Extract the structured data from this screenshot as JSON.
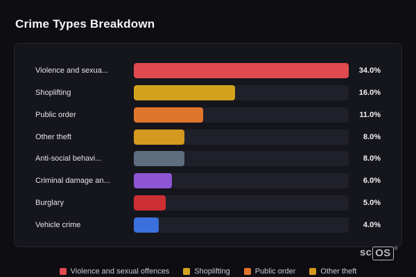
{
  "page": {
    "title": "Crime Types Breakdown"
  },
  "watermark": {
    "prefix": "sc",
    "boxed": "OS",
    "reg": "®"
  },
  "chart_data": {
    "type": "bar",
    "orientation": "horizontal",
    "title": "Crime Types Breakdown",
    "xlabel": "",
    "ylabel": "",
    "xlim": [
      0,
      34
    ],
    "grid": false,
    "legend_position": "bottom",
    "categories": [
      "Violence and sexual offences",
      "Shoplifting",
      "Public order",
      "Other theft",
      "Anti-social behaviour",
      "Criminal damage and arson",
      "Burglary",
      "Vehicle crime"
    ],
    "display_labels": [
      "Violence and sexua...",
      "Shoplifting",
      "Public order",
      "Other theft",
      "Anti-social behavi...",
      "Criminal damage an...",
      "Burglary",
      "Vehicle crime"
    ],
    "values": [
      34.0,
      16.0,
      11.0,
      8.0,
      8.0,
      6.0,
      5.0,
      4.0
    ],
    "value_labels": [
      "34.0%",
      "16.0%",
      "11.0%",
      "8.0%",
      "8.0%",
      "6.0%",
      "5.0%",
      "4.0%"
    ],
    "colors": [
      "#e04a4e",
      "#d4a31d",
      "#e0762b",
      "#d5991f",
      "#5f6d80",
      "#8d55d4",
      "#cc2f32",
      "#3b6fdb"
    ],
    "track_color": "#20202a",
    "legend": [
      {
        "label": "Violence and sexual offences",
        "color": "#e04a4e"
      },
      {
        "label": "Shoplifting",
        "color": "#d4a31d"
      },
      {
        "label": "Public order",
        "color": "#e0762b"
      },
      {
        "label": "Other theft",
        "color": "#d5991f"
      }
    ]
  }
}
